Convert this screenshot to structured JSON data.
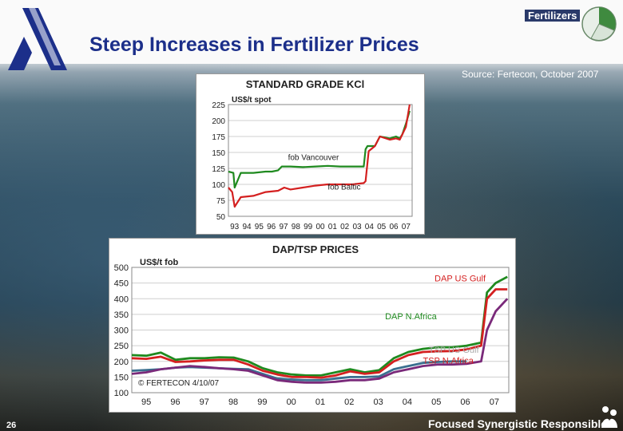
{
  "slide": {
    "section_label": "Fertilizers",
    "title": "Steep Increases in Fertilizer Prices",
    "source": "Source: Fertecon, October 2007",
    "footer": "Focused  Synergistic Responsible",
    "page_number": "26"
  },
  "chart_data": [
    {
      "type": "line",
      "title": "STANDARD GRADE KCl",
      "ylabel": "US$/t spot",
      "ylim": [
        50,
        225
      ],
      "yticks": [
        "225",
        "200",
        "175",
        "150",
        "125",
        "100",
        "75",
        "50"
      ],
      "x_ticks": [
        "93",
        "94",
        "95",
        "96",
        "97",
        "98",
        "99",
        "00",
        "01",
        "02",
        "03",
        "04",
        "05",
        "06",
        "07"
      ],
      "xlim": [
        1993,
        2007.8
      ],
      "series": [
        {
          "name": "fob Vancouver",
          "color": "#1f8a1f",
          "x": [
            1993.0,
            1993.4,
            1993.5,
            1994.0,
            1995.0,
            1996.0,
            1996.5,
            1997.0,
            1997.3,
            1998.0,
            1999.0,
            2000.0,
            2001.0,
            2002.0,
            2003.0,
            2003.9,
            2004.05,
            2004.2,
            2004.8,
            2005.2,
            2006.0,
            2006.5,
            2006.8,
            2007.0,
            2007.3,
            2007.6
          ],
          "y": [
            120,
            118,
            95,
            118,
            118,
            120,
            120,
            122,
            128,
            128,
            127,
            128,
            129,
            128,
            128,
            128,
            155,
            160,
            160,
            175,
            172,
            175,
            172,
            178,
            195,
            215
          ]
        },
        {
          "name": "fob Baltic",
          "color": "#d42020",
          "x": [
            1993.0,
            1993.3,
            1993.5,
            1994.0,
            1995.0,
            1996.0,
            1997.0,
            1997.5,
            1998.0,
            1999.0,
            2000.0,
            2001.0,
            2002.0,
            2003.0,
            2003.9,
            2004.05,
            2004.3,
            2004.8,
            2005.2,
            2006.0,
            2006.5,
            2006.8,
            2007.0,
            2007.3,
            2007.6
          ],
          "y": [
            95,
            88,
            65,
            80,
            82,
            88,
            90,
            95,
            92,
            95,
            98,
            100,
            100,
            100,
            102,
            105,
            152,
            160,
            175,
            170,
            172,
            170,
            178,
            190,
            225
          ]
        }
      ],
      "annotations": [
        {
          "text": "fob Vancouver",
          "x": 1997.8,
          "y": 138
        },
        {
          "text": "fob Baltic",
          "x": 2001.0,
          "y": 92
        }
      ]
    },
    {
      "type": "line",
      "title": "DAP/TSP PRICES",
      "ylabel": "US$/t fob",
      "ylim": [
        100,
        500
      ],
      "yticks": [
        "500",
        "450",
        "400",
        "350",
        "300",
        "250",
        "200",
        "150",
        "100"
      ],
      "x_ticks": [
        "95",
        "96",
        "97",
        "98",
        "99",
        "00",
        "01",
        "02",
        "03",
        "04",
        "05",
        "06",
        "07"
      ],
      "xlim": [
        1995,
        2007.95
      ],
      "annotation": "© FERTECON 4/10/07",
      "series": [
        {
          "name": "DAP US Gulf",
          "color": "#1f8a1f",
          "x": [
            1995.0,
            1995.5,
            1996.0,
            1996.5,
            1997.0,
            1997.5,
            1998.0,
            1998.5,
            1999.0,
            1999.5,
            2000.0,
            2000.5,
            2001.0,
            2001.5,
            2002.0,
            2002.5,
            2003.0,
            2003.5,
            2004.0,
            2004.5,
            2005.0,
            2005.5,
            2006.0,
            2006.5,
            2007.0,
            2007.2,
            2007.5,
            2007.9
          ],
          "y": [
            220,
            218,
            228,
            205,
            210,
            210,
            213,
            212,
            200,
            178,
            165,
            158,
            155,
            155,
            165,
            175,
            165,
            172,
            210,
            230,
            240,
            245,
            245,
            250,
            260,
            420,
            450,
            470
          ]
        },
        {
          "name": "DAP N.Africa",
          "color": "#d42020",
          "x": [
            1995.0,
            1995.5,
            1996.0,
            1996.5,
            1997.0,
            1997.5,
            1998.0,
            1998.5,
            1999.0,
            1999.5,
            2000.0,
            2000.5,
            2001.0,
            2001.5,
            2002.0,
            2002.5,
            2003.0,
            2003.5,
            2004.0,
            2004.5,
            2005.0,
            2005.5,
            2006.0,
            2006.5,
            2007.0,
            2007.2,
            2007.5,
            2007.9
          ],
          "y": [
            210,
            208,
            215,
            198,
            200,
            203,
            205,
            205,
            190,
            170,
            158,
            150,
            150,
            148,
            155,
            168,
            160,
            165,
            200,
            220,
            230,
            232,
            233,
            238,
            250,
            400,
            430,
            430
          ]
        },
        {
          "name": "TSP US Gulf",
          "color": "#3a6f8f",
          "x": [
            1995.0,
            1995.5,
            1996.0,
            1996.5,
            1997.0,
            1997.5,
            1998.0,
            1998.5,
            1999.0,
            1999.5,
            2000.0,
            2000.5,
            2001.0,
            2001.5,
            2002.0,
            2002.5,
            2003.0,
            2003.5,
            2004.0,
            2004.5,
            2005.0,
            2005.5,
            2006.0,
            2006.5
          ],
          "y": [
            170,
            172,
            175,
            180,
            182,
            180,
            178,
            176,
            175,
            160,
            145,
            142,
            140,
            140,
            145,
            150,
            150,
            152,
            175,
            185,
            195,
            198,
            200,
            200
          ]
        },
        {
          "name": "TSP N.Africa",
          "color": "#7a2a7a",
          "x": [
            1995.0,
            1995.5,
            1996.0,
            1996.5,
            1997.0,
            1997.5,
            1998.0,
            1998.5,
            1999.0,
            1999.5,
            2000.0,
            2000.5,
            2001.0,
            2001.5,
            2002.0,
            2002.5,
            2003.0,
            2003.5,
            2004.0,
            2004.5,
            2005.0,
            2005.5,
            2006.0,
            2006.5,
            2007.0,
            2007.2,
            2007.5,
            2007.9
          ],
          "y": [
            160,
            165,
            175,
            180,
            185,
            182,
            178,
            175,
            170,
            155,
            140,
            135,
            132,
            132,
            135,
            140,
            140,
            145,
            165,
            175,
            185,
            190,
            190,
            192,
            200,
            300,
            360,
            400
          ]
        }
      ]
    }
  ]
}
